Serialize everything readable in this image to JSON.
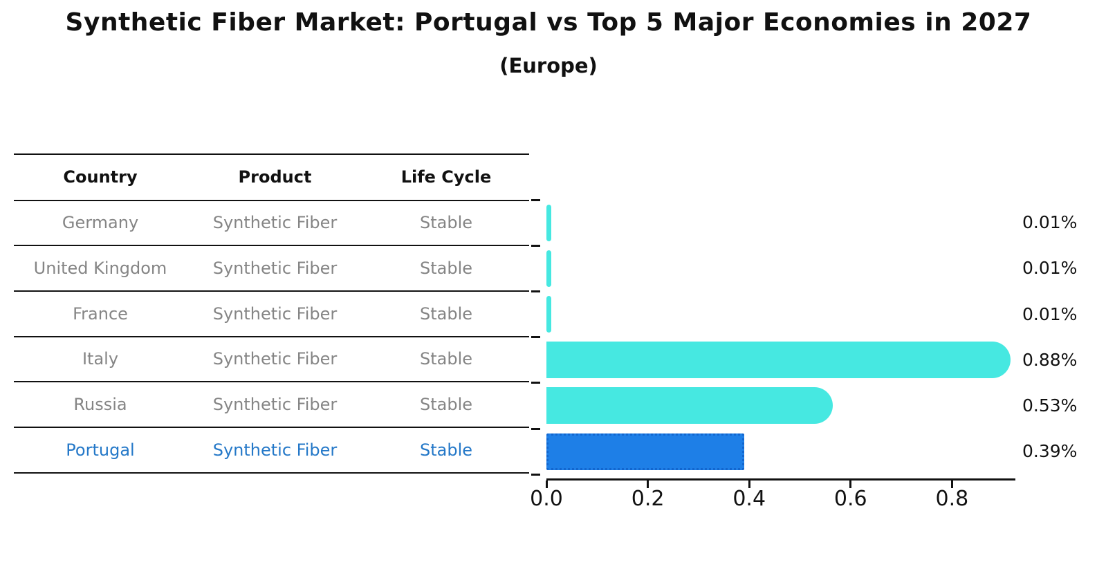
{
  "title": "Synthetic Fiber Market: Portugal vs Top 5 Major Economies in 2027",
  "subtitle": "(Europe)",
  "table": {
    "headers": [
      "Country",
      "Product",
      "Life Cycle"
    ],
    "rows": [
      {
        "country": "Germany",
        "product": "Synthetic Fiber",
        "life_cycle": "Stable",
        "highlight": false
      },
      {
        "country": "United Kingdom",
        "product": "Synthetic Fiber",
        "life_cycle": "Stable",
        "highlight": false
      },
      {
        "country": "France",
        "product": "Synthetic Fiber",
        "life_cycle": "Stable",
        "highlight": false
      },
      {
        "country": "Italy",
        "product": "Synthetic Fiber",
        "life_cycle": "Stable",
        "highlight": false
      },
      {
        "country": "Russia",
        "product": "Synthetic Fiber",
        "life_cycle": "Stable",
        "highlight": false
      },
      {
        "country": "Portugal",
        "product": "Synthetic Fiber",
        "life_cycle": "Stable",
        "highlight": true
      }
    ]
  },
  "chart_data": {
    "type": "bar",
    "orientation": "horizontal",
    "categories": [
      "Germany",
      "United Kingdom",
      "France",
      "Italy",
      "Russia",
      "Portugal"
    ],
    "values": [
      0.01,
      0.01,
      0.01,
      0.88,
      0.53,
      0.39
    ],
    "value_labels": [
      "0.01%",
      "0.01%",
      "0.01%",
      "0.88%",
      "0.53%",
      "0.39%"
    ],
    "x_ticks": [
      0.0,
      0.2,
      0.4,
      0.6,
      0.8
    ],
    "x_tick_labels": [
      "0.0",
      "0.2",
      "0.4",
      "0.6",
      "0.8"
    ],
    "xlim": [
      0,
      0.925
    ],
    "grid": false,
    "legend": null,
    "bar_color": "#46E8E1",
    "highlight_bar_color": "#1E7FE7",
    "highlight_index": 5,
    "highlight_text_color": "#2478C8"
  }
}
